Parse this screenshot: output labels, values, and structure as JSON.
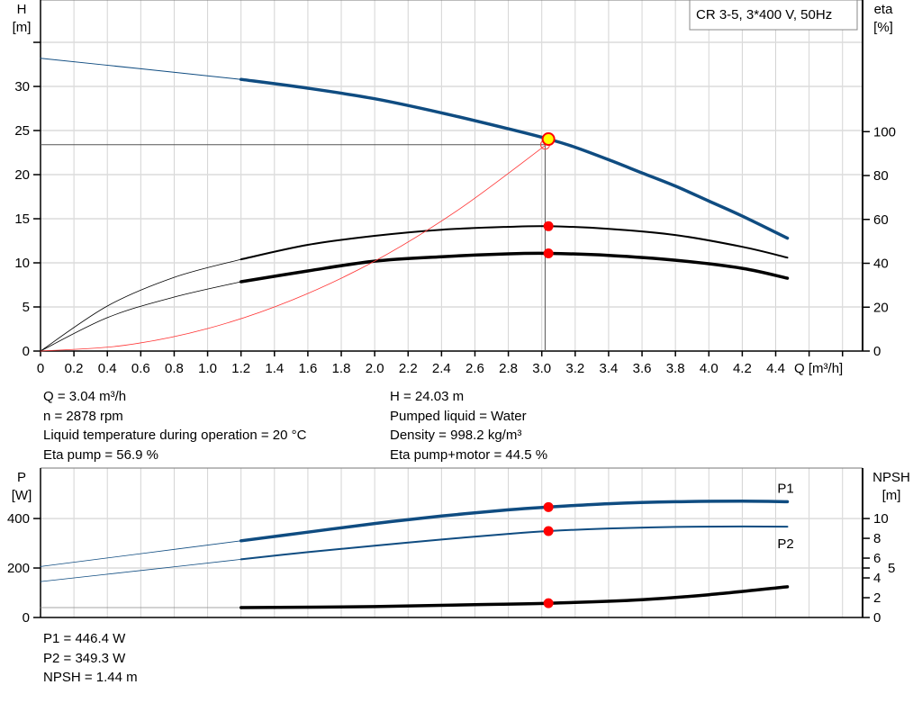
{
  "title_box": "CR 3-5, 3*400 V, 50Hz",
  "chart_data": [
    {
      "type": "line",
      "x_label": "Q [m³/h]",
      "xlim": [
        0,
        4.92
      ],
      "x_ticks": [
        "0",
        "0.2",
        "0.4",
        "0.6",
        "0.8",
        "1.0",
        "1.2",
        "1.4",
        "1.6",
        "1.8",
        "2.0",
        "2.2",
        "2.4",
        "2.6",
        "2.8",
        "3.0",
        "3.2",
        "3.4",
        "3.6",
        "3.8",
        "4.0",
        "4.2",
        "4.4"
      ],
      "left_axis": {
        "label_top": "H",
        "label_unit": "[m]",
        "ylim": [
          0,
          39.8
        ],
        "ticks": [
          "0",
          "5",
          "10",
          "15",
          "20",
          "25",
          "30"
        ]
      },
      "right_axis": {
        "label_top": "eta",
        "label_unit": "[%]",
        "ylim": [
          0,
          160
        ],
        "ticks": [
          "0",
          "20",
          "40",
          "60",
          "80",
          "100"
        ]
      },
      "grid": true,
      "series": [
        {
          "key": "H_ext",
          "axis": "left",
          "color": "#0f4c81",
          "style": "thin",
          "points": [
            [
              0,
              33.2
            ],
            [
              0.6,
              32.0
            ],
            [
              1.2,
              30.8
            ]
          ]
        },
        {
          "key": "H",
          "axis": "left",
          "color": "#0f4c81",
          "style": "thick",
          "points": [
            [
              1.2,
              30.8
            ],
            [
              1.6,
              29.8
            ],
            [
              2.0,
              28.6
            ],
            [
              2.4,
              27.0
            ],
            [
              2.8,
              25.2
            ],
            [
              3.04,
              24.03
            ],
            [
              3.2,
              23.1
            ],
            [
              3.4,
              21.7
            ],
            [
              3.6,
              20.2
            ],
            [
              3.8,
              18.7
            ],
            [
              4.0,
              17.0
            ],
            [
              4.2,
              15.3
            ],
            [
              4.47,
              12.8
            ]
          ]
        },
        {
          "key": "eta_pump_ext",
          "axis": "right",
          "color": "#000000",
          "style": "hair",
          "points": [
            [
              0,
              0
            ],
            [
              0.4,
              20.5
            ],
            [
              0.8,
              33.6
            ],
            [
              1.2,
              41.8
            ]
          ]
        },
        {
          "key": "eta_pump",
          "axis": "right",
          "color": "#000000",
          "style": "medium",
          "points": [
            [
              1.2,
              41.8
            ],
            [
              1.6,
              48.4
            ],
            [
              2.0,
              52.5
            ],
            [
              2.4,
              55.3
            ],
            [
              2.8,
              56.6
            ],
            [
              3.04,
              56.9
            ],
            [
              3.4,
              55.7
            ],
            [
              3.8,
              52.9
            ],
            [
              4.2,
              47.5
            ],
            [
              4.47,
              42.6
            ]
          ]
        },
        {
          "key": "eta_total_ext",
          "axis": "right",
          "color": "#000000",
          "style": "hair",
          "points": [
            [
              0,
              0
            ],
            [
              0.4,
              15.2
            ],
            [
              0.8,
              24.6
            ],
            [
              1.2,
              31.6
            ]
          ]
        },
        {
          "key": "eta_total",
          "axis": "right",
          "color": "#000000",
          "style": "thick",
          "points": [
            [
              1.2,
              31.6
            ],
            [
              1.6,
              36.5
            ],
            [
              2.0,
              41.0
            ],
            [
              2.4,
              43.0
            ],
            [
              2.8,
              44.3
            ],
            [
              3.04,
              44.5
            ],
            [
              3.4,
              43.6
            ],
            [
              3.8,
              41.4
            ],
            [
              4.2,
              37.7
            ],
            [
              4.47,
              33.2
            ]
          ]
        },
        {
          "key": "system",
          "axis": "left",
          "color": "#ff3333",
          "style": "hair",
          "points": [
            [
              0,
              0
            ],
            [
              0.5,
              0.64
            ],
            [
              1.0,
              2.55
            ],
            [
              1.5,
              5.75
            ],
            [
              2.0,
              10.2
            ],
            [
              2.5,
              16.0
            ],
            [
              3.02,
              23.3
            ]
          ]
        }
      ],
      "duty_point": {
        "Q": 3.02,
        "H": 23.4
      },
      "operating_point": {
        "Q": 3.04,
        "H": 24.03,
        "eta_pump": 56.9,
        "eta_total": 44.5
      },
      "colors": {
        "pump_curve": "#0f4c81",
        "marker": "#ff0000",
        "operating_marker_fill": "#ffff00",
        "system_curve": "#ff3333"
      }
    },
    {
      "type": "line",
      "xlim": [
        0,
        4.92
      ],
      "left_axis": {
        "label_top": "P",
        "label_unit": "[W]",
        "ylim": [
          0,
          604
        ],
        "ticks": [
          "0",
          "200",
          "400"
        ]
      },
      "right_axis": {
        "label_top": "NPSH",
        "label_unit": "[m]",
        "ylim": [
          0,
          15.1
        ],
        "ticks": [
          "0",
          "2",
          "4",
          "5",
          "6",
          "8",
          "10"
        ]
      },
      "grid": true,
      "series": [
        {
          "key": "P1_ext",
          "axis": "left",
          "color": "#0f4c81",
          "style": "hair",
          "points": [
            [
              0,
              206
            ],
            [
              0.6,
              258
            ],
            [
              1.2,
              310
            ]
          ]
        },
        {
          "key": "P1",
          "name": "P1",
          "axis": "left",
          "color": "#0f4c81",
          "style": "thick",
          "points": [
            [
              1.2,
              310
            ],
            [
              1.6,
              345
            ],
            [
              2.0,
              380
            ],
            [
              2.4,
              410
            ],
            [
              2.8,
              435
            ],
            [
              3.04,
              446.4
            ],
            [
              3.4,
              460
            ],
            [
              3.8,
              468
            ],
            [
              4.2,
              470
            ],
            [
              4.47,
              468
            ]
          ]
        },
        {
          "key": "P2_ext",
          "axis": "left",
          "color": "#0f4c81",
          "style": "hair",
          "points": [
            [
              0,
              145
            ],
            [
              0.6,
              190
            ],
            [
              1.2,
              235
            ]
          ]
        },
        {
          "key": "P2",
          "name": "P2",
          "axis": "left",
          "color": "#0f4c81",
          "style": "medium",
          "points": [
            [
              1.2,
              235
            ],
            [
              1.6,
              264
            ],
            [
              2.0,
              290
            ],
            [
              2.4,
              315
            ],
            [
              2.8,
              338
            ],
            [
              3.04,
              349.3
            ],
            [
              3.4,
              360
            ],
            [
              3.8,
              366
            ],
            [
              4.2,
              368
            ],
            [
              4.47,
              367
            ]
          ]
        },
        {
          "key": "NPSH_ext",
          "axis": "right",
          "color": "#888888",
          "style": "hair",
          "points": [
            [
              0,
              1.0
            ],
            [
              1.2,
              1.0
            ]
          ]
        },
        {
          "key": "NPSH",
          "axis": "right",
          "color": "#000000",
          "style": "thick",
          "points": [
            [
              1.2,
              1.0
            ],
            [
              2.0,
              1.1
            ],
            [
              2.6,
              1.3
            ],
            [
              3.04,
              1.44
            ],
            [
              3.6,
              1.8
            ],
            [
              4.0,
              2.3
            ],
            [
              4.47,
              3.1
            ]
          ]
        }
      ],
      "operating_point": {
        "Q": 3.04,
        "P1": 446.4,
        "P2": 349.3,
        "NPSH": 1.44
      }
    }
  ],
  "info_top_left": [
    "Q = 3.04 m³/h",
    "n = 2878 rpm",
    "Liquid temperature during operation = 20 °C",
    "Eta pump = 56.9 %"
  ],
  "info_top_right": [
    "H = 24.03 m",
    "Pumped liquid = Water",
    "Density = 998.2 kg/m³",
    "Eta pump+motor = 44.5 %"
  ],
  "info_bottom": [
    "P1 = 446.4 W",
    "P2 = 349.3 W",
    "NPSH = 1.44 m"
  ]
}
